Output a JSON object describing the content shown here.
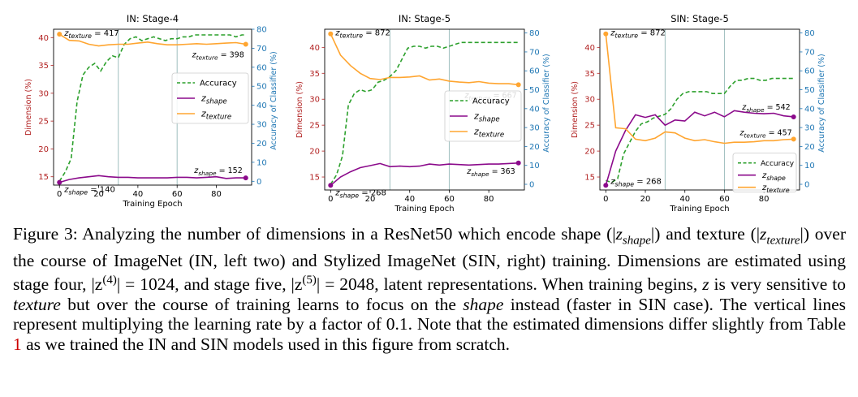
{
  "figure": {
    "caption": {
      "s1": "Figure 3: Analyzing the number of dimensions in a ResNet50 which encode shape (|",
      "s1_sub": "z",
      "s1_subtext": "shape",
      "s2": "|) and texture (|",
      "s2_sub": "z",
      "s2_subtext": "texture",
      "s3": "|) over the course of ImageNet (IN, left two) and Stylized ImageNet (SIN, right) training. Dimensions are estimated using stage four, |z",
      "s3_sup": "(4)",
      "s4": "| = 1024, and stage five, |z",
      "s4_sup": "(5)",
      "s5": "| = 2048, latent representations. When training begins, ",
      "s5_z": "z",
      "s6": " is very sensitive to ",
      "s6_em": "texture",
      "s7": " but over the course of training learns to focus on the ",
      "s7_em": "shape",
      "s8": " instead (faster in SIN case). The vertical lines represent multiplying the learning rate by a factor of 0.1. Note that the estimated dimensions differ slightly from Table ",
      "s8_ref": "1",
      "s9": " as we trained the IN and SIN models used in this figure from scratch."
    }
  },
  "colors": {
    "accuracy": "#2ca02c",
    "shape": "#8b0a8b",
    "texture": "#ffa530",
    "left_axis": "#b22222",
    "right_axis": "#1f77b4",
    "vline": "#9fbfbf"
  },
  "chart_data": [
    {
      "type": "line",
      "title": "IN: Stage-4",
      "xlabel": "Training Epoch",
      "ylabel": "Dimension (%)",
      "ylabel_right": "Accuracy of Classifier (%)",
      "xlim": [
        -3,
        98
      ],
      "ylim": [
        13.5,
        41.5
      ],
      "ylim_right": [
        -2,
        80
      ],
      "xticks": [
        0,
        20,
        40,
        60,
        80
      ],
      "yticks": [
        15,
        20,
        25,
        30,
        35,
        40
      ],
      "yticks_right": [
        0,
        10,
        20,
        30,
        40,
        50,
        60,
        70,
        80
      ],
      "vlines": [
        30,
        60
      ],
      "legend": {
        "position": "center-right",
        "entries": [
          "Accuracy",
          "z_shape",
          "z_texture"
        ],
        "acc": "Accuracy",
        "shape": "z",
        "shape_sub": "shape",
        "texture": "z",
        "texture_sub": "texture"
      },
      "series": [
        {
          "name": "Accuracy",
          "axis": "right",
          "style": "dashed",
          "x": [
            0,
            3,
            6,
            9,
            12,
            15,
            18,
            21,
            24,
            27,
            30,
            33,
            36,
            39,
            42,
            45,
            48,
            51,
            54,
            57,
            60,
            63,
            66,
            69,
            72,
            75,
            78,
            81,
            84,
            87,
            90,
            93,
            95
          ],
          "values": [
            0,
            5,
            12,
            42,
            56,
            60,
            62,
            58,
            63,
            66,
            65,
            72,
            75,
            76,
            74,
            75,
            76,
            75,
            74,
            75,
            75,
            76,
            76,
            77,
            77,
            77,
            77,
            77,
            77,
            77,
            76,
            77,
            77
          ]
        },
        {
          "name": "z_shape",
          "axis": "left",
          "x": [
            0,
            5,
            10,
            15,
            20,
            25,
            30,
            35,
            40,
            45,
            50,
            55,
            60,
            65,
            70,
            75,
            80,
            85,
            90,
            95
          ],
          "values": [
            14.0,
            14.5,
            14.8,
            15.0,
            15.2,
            15.0,
            14.9,
            14.9,
            14.8,
            14.8,
            14.8,
            14.8,
            14.9,
            14.9,
            14.8,
            14.9,
            15.0,
            14.7,
            14.8,
            14.8
          ]
        },
        {
          "name": "z_texture",
          "axis": "left",
          "x": [
            0,
            5,
            10,
            15,
            20,
            25,
            30,
            35,
            40,
            45,
            50,
            55,
            60,
            65,
            70,
            75,
            80,
            85,
            90,
            95
          ],
          "values": [
            40.6,
            39.5,
            39.4,
            38.8,
            38.5,
            38.7,
            38.8,
            38.8,
            39.0,
            39.2,
            38.9,
            38.7,
            38.7,
            38.8,
            38.9,
            38.8,
            38.9,
            39.0,
            39.1,
            38.8
          ]
        }
      ],
      "annotations": {
        "texture_start": {
          "z": "z",
          "sub": "texture",
          "rest": " = 417"
        },
        "texture_end": {
          "z": "z",
          "sub": "texture",
          "rest": " = 398"
        },
        "shape_start": {
          "z": "z",
          "sub": "shape",
          "rest": " = 140"
        },
        "shape_end": {
          "z": "z",
          "sub": "shape",
          "rest": " = 152"
        }
      }
    },
    {
      "type": "line",
      "title": "IN: Stage-5",
      "xlabel": "Training Epoch",
      "ylabel": "Dimension (%)",
      "ylabel_right": "Accuracy of Classifier (%)",
      "xlim": [
        -3,
        98
      ],
      "ylim": [
        12.5,
        43.5
      ],
      "ylim_right": [
        -3,
        82
      ],
      "xticks": [
        0,
        20,
        40,
        60,
        80
      ],
      "yticks": [
        15,
        20,
        25,
        30,
        35,
        40
      ],
      "yticks_right": [
        0,
        10,
        20,
        30,
        40,
        50,
        60,
        70,
        80
      ],
      "vlines": [
        30,
        60
      ],
      "legend": {
        "position": "center-right",
        "entries": [
          "Accuracy",
          "z_shape",
          "z_texture"
        ],
        "acc": "Accuracy",
        "shape": "z",
        "shape_sub": "shape",
        "texture": "z",
        "texture_sub": "texture"
      },
      "series": [
        {
          "name": "Accuracy",
          "axis": "right",
          "style": "dashed",
          "x": [
            0,
            3,
            6,
            9,
            12,
            15,
            18,
            21,
            24,
            27,
            30,
            33,
            36,
            39,
            42,
            45,
            48,
            51,
            54,
            57,
            60,
            63,
            66,
            69,
            72,
            75,
            78,
            81,
            84,
            87,
            90,
            93,
            95
          ],
          "values": [
            0,
            5,
            15,
            42,
            48,
            50,
            49,
            50,
            54,
            55,
            57,
            60,
            66,
            72,
            73,
            73,
            72,
            73,
            73,
            72,
            73,
            74,
            75,
            75,
            75,
            75,
            75,
            75,
            75,
            75,
            75,
            75,
            75
          ]
        },
        {
          "name": "z_shape",
          "axis": "left",
          "x": [
            0,
            5,
            10,
            15,
            20,
            25,
            30,
            35,
            40,
            45,
            50,
            55,
            60,
            65,
            70,
            75,
            80,
            85,
            90,
            95
          ],
          "values": [
            13.4,
            15.0,
            16.0,
            16.8,
            17.2,
            17.6,
            17.0,
            17.1,
            17.0,
            17.1,
            17.5,
            17.3,
            17.5,
            17.4,
            17.3,
            17.4,
            17.5,
            17.5,
            17.6,
            17.7
          ]
        },
        {
          "name": "z_texture",
          "axis": "left",
          "x": [
            0,
            5,
            10,
            15,
            20,
            25,
            30,
            35,
            40,
            45,
            50,
            55,
            60,
            65,
            70,
            75,
            80,
            85,
            90,
            95
          ],
          "values": [
            42.6,
            38.5,
            36.5,
            35.0,
            34.0,
            33.8,
            34.2,
            34.2,
            34.3,
            34.5,
            33.7,
            33.9,
            33.5,
            33.3,
            33.2,
            33.4,
            33.1,
            33.0,
            33.0,
            32.8
          ]
        }
      ],
      "annotations": {
        "texture_start": {
          "z": "z",
          "sub": "texture",
          "rest": " = 872"
        },
        "texture_end": {
          "z": "z",
          "sub": "texture",
          "rest": " = 667"
        },
        "shape_start": {
          "z": "z",
          "sub": "shape",
          "rest": " = 268"
        },
        "shape_end": {
          "z": "z",
          "sub": "shape",
          "rest": " = 363"
        }
      }
    },
    {
      "type": "line",
      "title": "SIN: Stage-5",
      "xlabel": "Training Epoch",
      "ylabel": "Dimension (%)",
      "ylabel_right": "Accuracy of Classifier (%)",
      "xlim": [
        -3,
        98
      ],
      "ylim": [
        12.5,
        43.5
      ],
      "ylim_right": [
        -3,
        82
      ],
      "xticks": [
        0,
        20,
        40,
        60,
        80
      ],
      "yticks": [
        15,
        20,
        25,
        30,
        35,
        40
      ],
      "yticks_right": [
        0,
        10,
        20,
        30,
        40,
        50,
        60,
        70,
        80
      ],
      "vlines": [
        30,
        60
      ],
      "legend": {
        "position": "lower-right",
        "entries": [
          "Accuracy",
          "z_shape",
          "z_texture"
        ],
        "acc": "Accuracy",
        "shape": "z",
        "shape_sub": "shape",
        "texture": "z",
        "texture_sub": "texture"
      },
      "series": [
        {
          "name": "Accuracy",
          "axis": "right",
          "style": "dashed",
          "x": [
            0,
            3,
            6,
            9,
            12,
            15,
            18,
            21,
            24,
            27,
            30,
            33,
            36,
            39,
            42,
            45,
            48,
            51,
            54,
            57,
            60,
            63,
            66,
            69,
            72,
            75,
            78,
            81,
            84,
            87,
            90,
            93,
            95
          ],
          "values": [
            2,
            1,
            3,
            16,
            22,
            28,
            32,
            33,
            35,
            36,
            37,
            40,
            45,
            48,
            49,
            49,
            49,
            49,
            48,
            48,
            48,
            52,
            55,
            55,
            56,
            56,
            55,
            55,
            56,
            56,
            56,
            56,
            56
          ]
        },
        {
          "name": "z_shape",
          "axis": "left",
          "x": [
            0,
            5,
            10,
            15,
            20,
            25,
            30,
            35,
            40,
            45,
            50,
            55,
            60,
            65,
            70,
            75,
            80,
            85,
            90,
            95
          ],
          "values": [
            13.4,
            20.0,
            24.0,
            27.0,
            26.5,
            27.0,
            25.0,
            26.0,
            25.8,
            27.5,
            26.8,
            27.5,
            26.6,
            27.8,
            27.5,
            27.3,
            27.2,
            27.3,
            26.8,
            26.6
          ]
        },
        {
          "name": "z_texture",
          "axis": "left",
          "x": [
            0,
            5,
            10,
            15,
            20,
            25,
            30,
            35,
            40,
            45,
            50,
            55,
            60,
            65,
            70,
            75,
            80,
            85,
            90,
            95
          ],
          "values": [
            42.6,
            24.5,
            24.3,
            22.3,
            22.0,
            22.5,
            23.7,
            23.5,
            22.5,
            22.0,
            22.2,
            21.8,
            21.5,
            21.7,
            21.7,
            21.8,
            22.0,
            22.0,
            22.2,
            22.3
          ]
        }
      ],
      "annotations": {
        "texture_start": {
          "z": "z",
          "sub": "texture",
          "rest": " = 872"
        },
        "texture_end": {
          "z": "z",
          "sub": "texture",
          "rest": " = 457"
        },
        "shape_start": {
          "z": "z",
          "sub": "shape",
          "rest": " = 268"
        },
        "shape_end": {
          "z": "z",
          "sub": "shape",
          "rest": " = 542"
        }
      }
    }
  ]
}
